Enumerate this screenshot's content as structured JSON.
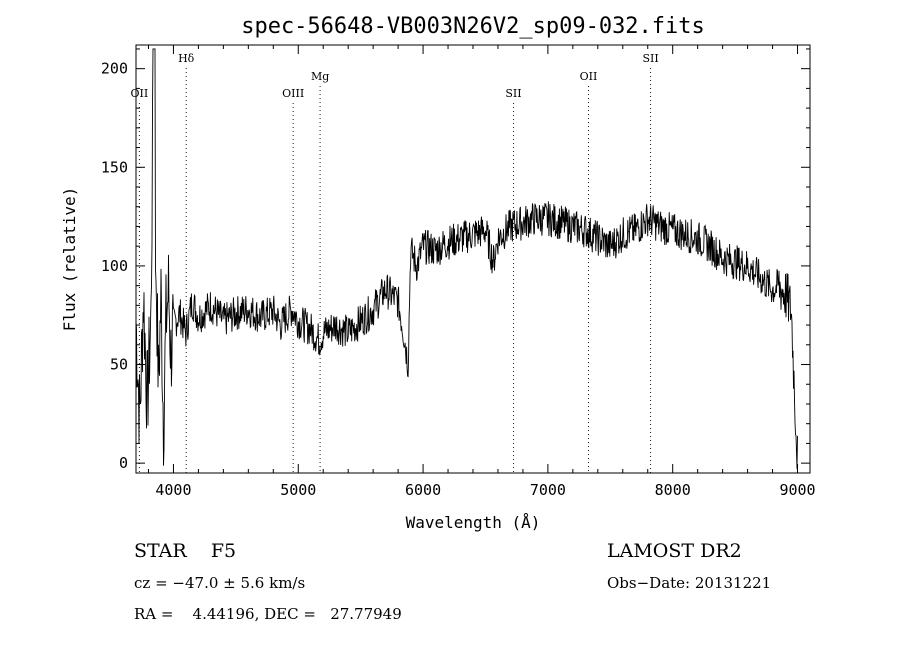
{
  "chart_data": {
    "type": "line",
    "title": "spec-56648-VB003N26V2_sp09-032.fits",
    "xlabel": "Wavelength (Å)",
    "ylabel": "Flux (relative)",
    "xlim": [
      3700,
      9100
    ],
    "ylim": [
      -5,
      212
    ],
    "xticks": [
      4000,
      5000,
      6000,
      7000,
      8000,
      9000
    ],
    "yticks": [
      0,
      50,
      100,
      150,
      200
    ],
    "grid": false,
    "line_color": "#000000",
    "series": [
      {
        "x": [
          3700,
          3730,
          3760,
          3790,
          3820,
          3840,
          3850,
          3860,
          3880,
          3900,
          3920,
          3940,
          3960,
          3980,
          4000,
          4050,
          4100,
          4150,
          4200,
          4300,
          4400,
          4500,
          4600,
          4700,
          4800,
          4860,
          4900,
          4950,
          5000,
          5100,
          5170,
          5200,
          5300,
          5400,
          5500,
          5600,
          5700,
          5800,
          5850,
          5880,
          5900,
          5950,
          6000,
          6100,
          6200,
          6300,
          6400,
          6500,
          6563,
          6600,
          6700,
          6800,
          6900,
          7000,
          7100,
          7200,
          7300,
          7400,
          7500,
          7600,
          7700,
          7800,
          7900,
          8000,
          8100,
          8200,
          8300,
          8400,
          8500,
          8600,
          8700,
          8800,
          8850,
          8900,
          8950,
          8980,
          9000
        ],
        "y": [
          72,
          22,
          85,
          30,
          74,
          210,
          60,
          100,
          40,
          85,
          20,
          72,
          88,
          55,
          70,
          76,
          66,
          82,
          74,
          80,
          72,
          76,
          78,
          74,
          77,
          70,
          74,
          78,
          72,
          68,
          62,
          66,
          70,
          66,
          72,
          78,
          88,
          82,
          64,
          50,
          108,
          100,
          110,
          108,
          112,
          114,
          116,
          118,
          102,
          114,
          120,
          122,
          124,
          124,
          122,
          120,
          118,
          114,
          110,
          116,
          118,
          124,
          120,
          118,
          116,
          114,
          110,
          104,
          102,
          100,
          94,
          88,
          90,
          86,
          78,
          30,
          2
        ]
      }
    ],
    "line_markers": [
      {
        "label": "OII",
        "x": 3727,
        "row": "low"
      },
      {
        "label": "Hδ",
        "x": 4102,
        "row": "high"
      },
      {
        "label": "OIII",
        "x": 4959,
        "row": "low"
      },
      {
        "label": "Mg",
        "x": 5175,
        "row": "mid"
      },
      {
        "label": "SII",
        "x": 6724,
        "row": "low"
      },
      {
        "label": "OII",
        "x": 7325,
        "row": "mid"
      },
      {
        "label": "SII",
        "x": 7823,
        "row": "high"
      }
    ]
  },
  "info": {
    "object_class": "STAR    F5",
    "release": "LAMOST DR2",
    "redshift": "cz = −47.0 ± 5.6 km/s",
    "obs_date": "Obs−Date: 20131221",
    "coords": "RA =    4.44196, DEC =   27.77949"
  }
}
